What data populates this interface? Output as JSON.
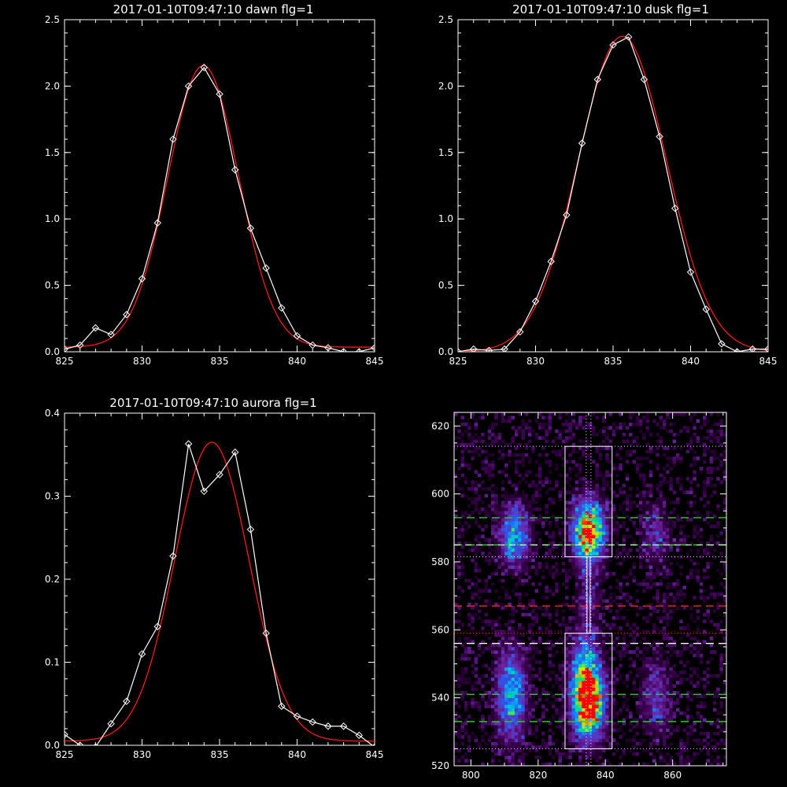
{
  "colors": {
    "background": "#000000",
    "axes": "#ffffff",
    "measured": "#ffffff",
    "fit": "#ff1a1a",
    "green_line": "#22cc22",
    "red_line": "#ff2222",
    "dotted": "#e8d8ff"
  },
  "chart_data": [
    {
      "type": "line",
      "title": "2017-01-10T09:47:10 dawn flg=1",
      "xlim": [
        825,
        845
      ],
      "ylim": [
        0,
        2.5
      ],
      "xticks": [
        "825",
        "830",
        "835",
        "840",
        "845"
      ],
      "yticks": [
        "0.0",
        "0.5",
        "1.0",
        "1.5",
        "2.0",
        "2.5"
      ],
      "series": [
        {
          "style": "white-diamonds",
          "x": [
            825,
            826,
            827,
            828,
            829,
            830,
            831,
            832,
            833,
            834,
            835,
            836,
            837,
            838,
            839,
            840,
            841,
            842,
            843,
            844,
            845
          ],
          "y": [
            0.02,
            0.05,
            0.18,
            0.13,
            0.28,
            0.55,
            0.97,
            1.6,
            2.0,
            2.14,
            1.94,
            1.37,
            0.93,
            0.63,
            0.33,
            0.12,
            0.05,
            0.03,
            0.0,
            0.0,
            0.03
          ]
        },
        {
          "style": "red-fit",
          "gauss": {
            "amp": 2.12,
            "mu": 833.95,
            "sigma": 2.28,
            "base": 0.035
          }
        }
      ]
    },
    {
      "type": "line",
      "title": "2017-01-10T09:47:10 dusk flg=1",
      "xlim": [
        825,
        845
      ],
      "ylim": [
        0,
        2.5
      ],
      "xticks": [
        "825",
        "830",
        "835",
        "840",
        "845"
      ],
      "yticks": [
        "0.0",
        "0.5",
        "1.0",
        "1.5",
        "2.0",
        "2.5"
      ],
      "series": [
        {
          "style": "white-diamonds",
          "x": [
            825,
            826,
            827,
            828,
            829,
            830,
            831,
            832,
            833,
            834,
            835,
            836,
            837,
            838,
            839,
            840,
            841,
            842,
            843,
            844,
            845
          ],
          "y": [
            0.0,
            0.02,
            0.01,
            0.02,
            0.15,
            0.38,
            0.68,
            1.03,
            1.57,
            2.05,
            2.31,
            2.37,
            2.05,
            1.62,
            1.08,
            0.6,
            0.32,
            0.06,
            0.0,
            0.02,
            0.02
          ]
        },
        {
          "style": "red-fit",
          "gauss": {
            "amp": 2.375,
            "mu": 835.6,
            "sigma": 2.85,
            "base": 0.0
          }
        }
      ]
    },
    {
      "type": "line",
      "title": "2017-01-10T09:47:10 aurora flg=1",
      "xlim": [
        825,
        845
      ],
      "ylim": [
        0,
        0.4
      ],
      "xticks": [
        "825",
        "830",
        "835",
        "840",
        "845"
      ],
      "yticks": [
        "0.0",
        "0.1",
        "0.2",
        "0.3",
        "0.4"
      ],
      "series": [
        {
          "style": "white-diamonds",
          "x": [
            825,
            826,
            827,
            828,
            829,
            830,
            831,
            832,
            833,
            834,
            835,
            836,
            837,
            838,
            839,
            840,
            841,
            842,
            843,
            844,
            845
          ],
          "y": [
            0.013,
            0.0,
            -0.002,
            0.026,
            0.053,
            0.11,
            0.143,
            0.228,
            0.363,
            0.306,
            0.326,
            0.353,
            0.26,
            0.135,
            0.047,
            0.035,
            0.028,
            0.023,
            0.023,
            0.012,
            -0.002
          ]
        },
        {
          "style": "red-fit",
          "gauss": {
            "amp": 0.36,
            "mu": 834.5,
            "sigma": 2.4,
            "base": 0.005
          }
        }
      ]
    },
    {
      "type": "heatmap",
      "xlim": [
        795,
        876
      ],
      "ylim": [
        520,
        624
      ],
      "xticks": [
        "800",
        "820",
        "840",
        "860"
      ],
      "yticks": [
        "520",
        "540",
        "560",
        "580",
        "600",
        "620"
      ],
      "blobs": [
        {
          "x": 835,
          "y": 589,
          "sx": 3.2,
          "sy": 6,
          "amp": 1.0
        },
        {
          "x": 835,
          "y": 538,
          "sx": 3.2,
          "sy": 7,
          "amp": 0.95
        },
        {
          "x": 834,
          "y": 548,
          "sx": 3,
          "sy": 8,
          "amp": 0.5
        },
        {
          "x": 813,
          "y": 588,
          "sx": 3,
          "sy": 6,
          "amp": 0.55
        },
        {
          "x": 812,
          "y": 541,
          "sx": 3,
          "sy": 9,
          "amp": 0.55
        },
        {
          "x": 855,
          "y": 588,
          "sx": 3,
          "sy": 6,
          "amp": 0.25
        },
        {
          "x": 855,
          "y": 540,
          "sx": 3,
          "sy": 7,
          "amp": 0.28
        },
        {
          "x": 835,
          "y": 570,
          "sx": 2,
          "sy": 6,
          "amp": 0.2
        }
      ],
      "boxes": [
        {
          "x0": 828,
          "x1": 842,
          "y0": 581.5,
          "y1": 614
        },
        {
          "x0": 828,
          "x1": 842,
          "y0": 525,
          "y1": 559
        }
      ],
      "vlines": [
        {
          "x": 834.3,
          "style": "dotted"
        },
        {
          "x": 835.7,
          "style": "dotted"
        }
      ],
      "hlines": [
        {
          "y": 614,
          "color": "#e8d8ff",
          "style": "dotted"
        },
        {
          "y": 593,
          "color": "#22cc22",
          "style": "dashed"
        },
        {
          "y": 585,
          "color": "#22cc22",
          "style": "dashed"
        },
        {
          "y": 585,
          "color": "#ffffff",
          "style": "dashed-thin"
        },
        {
          "y": 581.5,
          "color": "#e8d8ff",
          "style": "dotted"
        },
        {
          "y": 567,
          "color": "#ff2222",
          "style": "dashed"
        },
        {
          "y": 559,
          "color": "#ff2222",
          "style": "dotted"
        },
        {
          "y": 556,
          "color": "#ffffff",
          "style": "dashed"
        },
        {
          "y": 541,
          "color": "#22cc22",
          "style": "dashed"
        },
        {
          "y": 533,
          "color": "#22cc22",
          "style": "dashed"
        },
        {
          "y": 525,
          "color": "#e8d8ff",
          "style": "dotted"
        }
      ],
      "segment": {
        "x": 835,
        "y0": 559,
        "y1": 581.5
      }
    }
  ]
}
